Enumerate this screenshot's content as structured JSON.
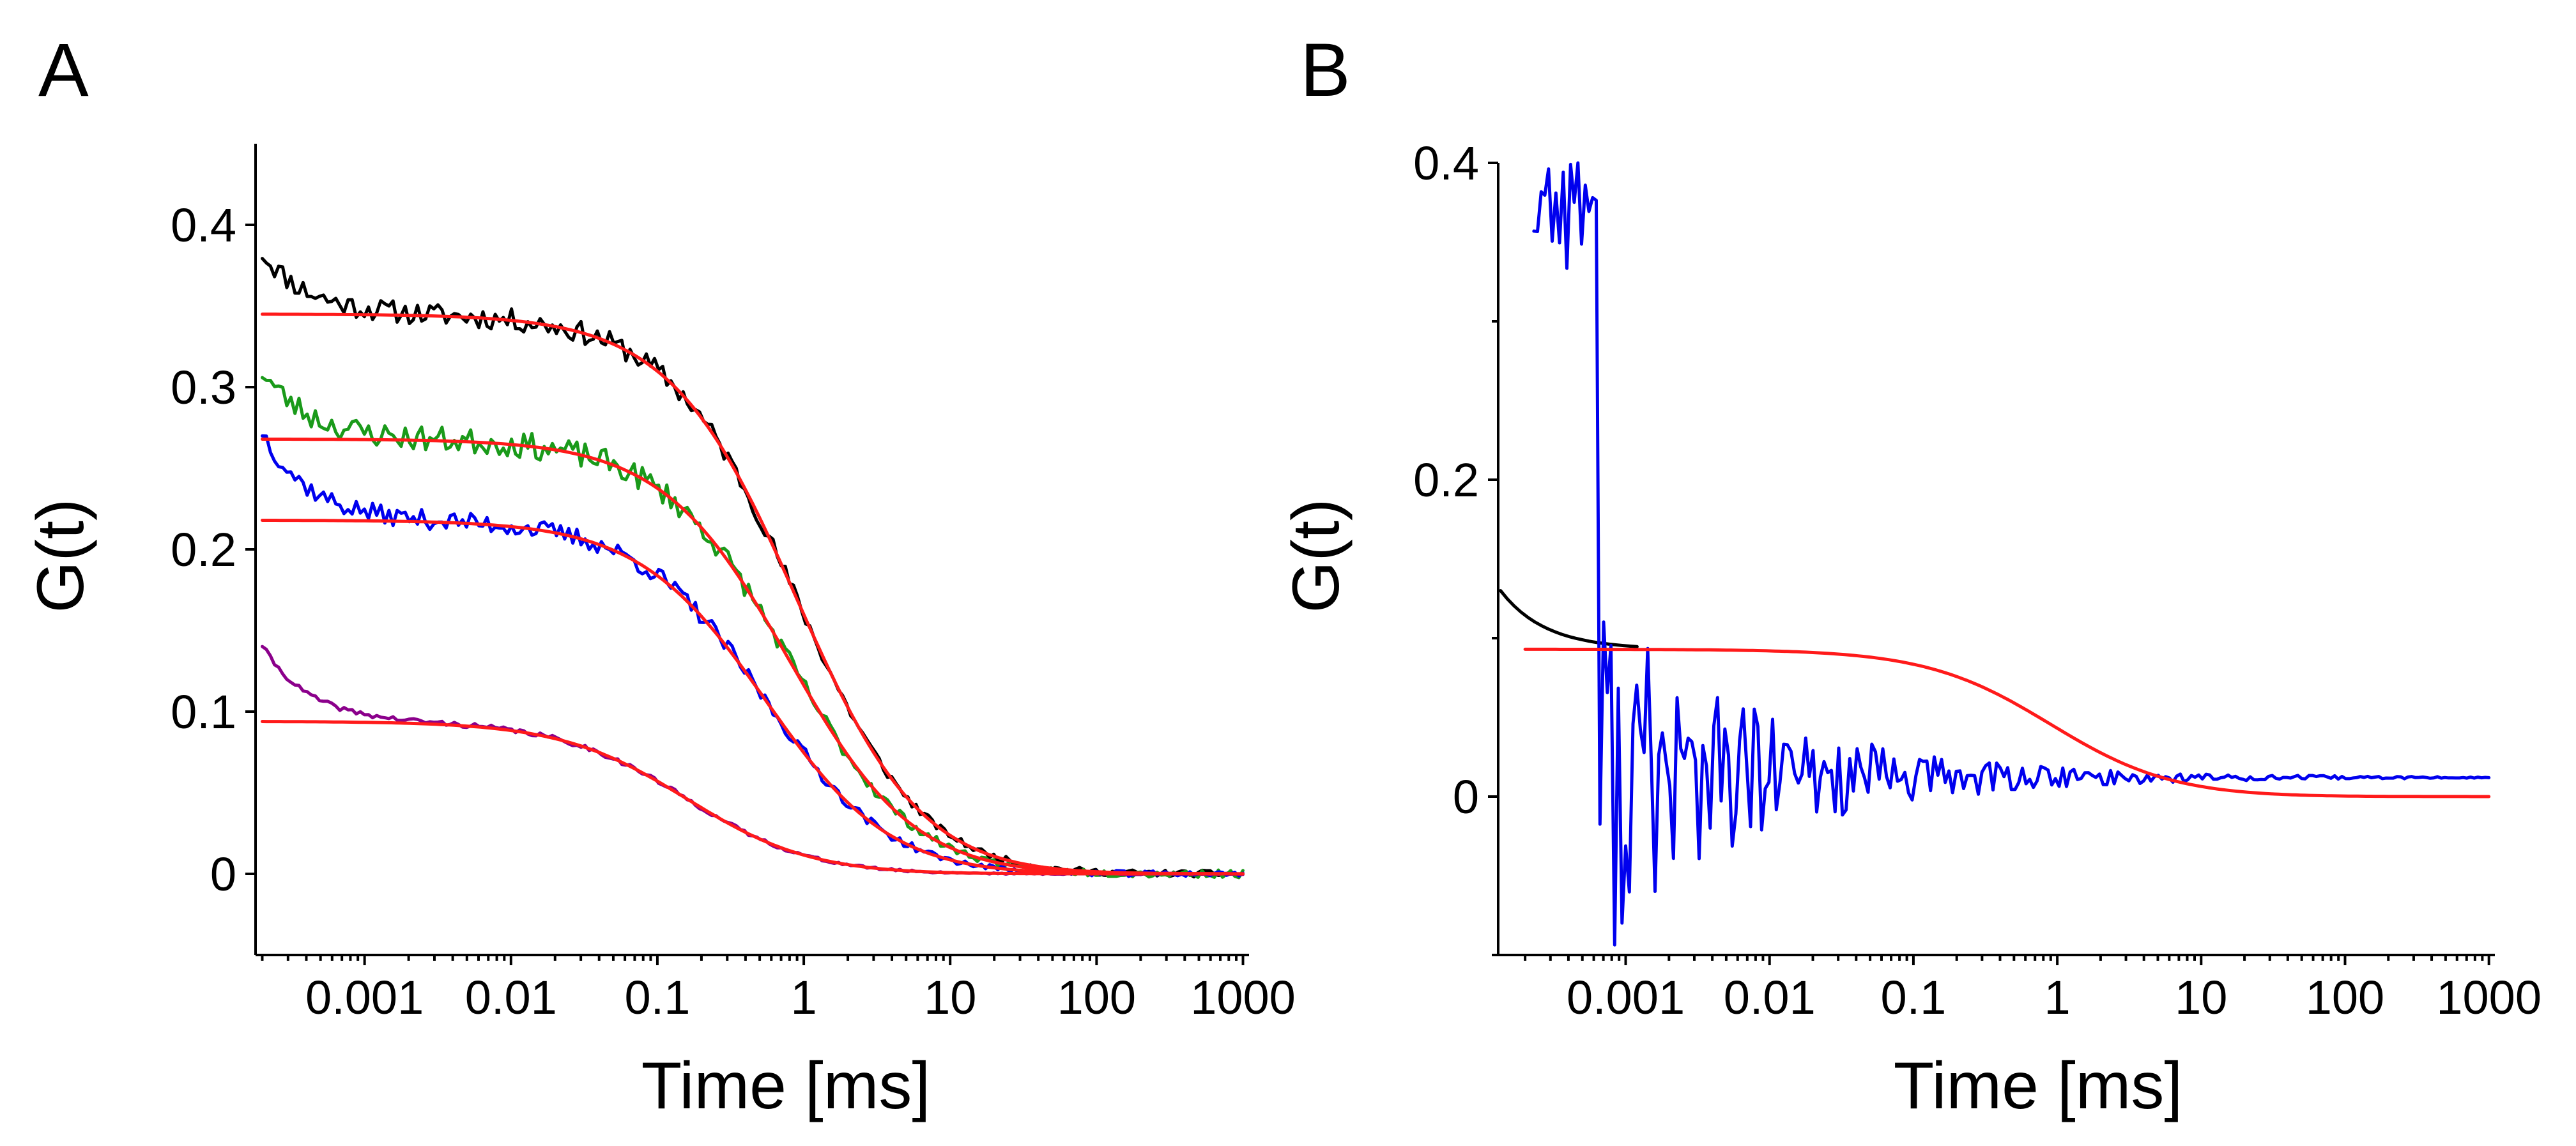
{
  "chart_data": [
    {
      "panel_label": "A",
      "type": "line",
      "xscale": "log",
      "xlabel": "Time [ms]",
      "ylabel": "G(t)",
      "xlim": [
        0.00018,
        1100
      ],
      "ylim": [
        -0.05,
        0.45
      ],
      "xticks": [
        0.001,
        0.01,
        0.1,
        1,
        10,
        100,
        1000
      ],
      "xtick_labels": [
        "0.001",
        "0.01",
        "0.1",
        "1",
        "10",
        "100",
        "1000"
      ],
      "yticks": [
        0,
        0.1,
        0.2,
        0.3,
        0.4
      ],
      "ytick_labels": [
        "0",
        "0.1",
        "0.2",
        "0.3",
        "0.4"
      ],
      "series": [
        {
          "name": "black data",
          "color": "#000000",
          "kind": "data",
          "G0": 0.345,
          "tauD": 0.9,
          "tail": 0.04,
          "start": 0.383,
          "noise": 0.007,
          "seed": 11
        },
        {
          "name": "green data",
          "color": "#1a9a1a",
          "kind": "data",
          "G0": 0.268,
          "tauD": 0.8,
          "tail": 0.05,
          "start": 0.31,
          "noise": 0.008,
          "seed": 23
        },
        {
          "name": "blue data",
          "color": "#0000ee",
          "kind": "data",
          "G0": 0.218,
          "tauD": 0.55,
          "tail": 0.05,
          "start": 0.273,
          "noise": 0.006,
          "seed": 37
        },
        {
          "name": "purple data",
          "color": "#8b008b",
          "kind": "data",
          "G0": 0.094,
          "tauD": 0.16,
          "tail": 0.05,
          "start": 0.141,
          "noise": 0.0015,
          "seed": 41
        },
        {
          "name": "black fit",
          "color": "#ff1a1a",
          "kind": "fit",
          "G0": 0.345,
          "tauD": 0.9
        },
        {
          "name": "green fit",
          "color": "#ff1a1a",
          "kind": "fit",
          "G0": 0.268,
          "tauD": 0.8
        },
        {
          "name": "blue fit",
          "color": "#ff1a1a",
          "kind": "fit",
          "G0": 0.218,
          "tauD": 0.55
        },
        {
          "name": "purple fit",
          "color": "#ff1a1a",
          "kind": "fit",
          "G0": 0.094,
          "tauD": 0.16
        }
      ]
    },
    {
      "panel_label": "B",
      "type": "line",
      "xscale": "log",
      "xlabel": "Time [ms]",
      "ylabel": "G(t)",
      "xlim": [
        0.00013,
        1100
      ],
      "ylim": [
        -0.1,
        0.4
      ],
      "xticks": [
        0.001,
        0.01,
        0.1,
        1,
        10,
        100,
        1000
      ],
      "xtick_labels": [
        "0.001",
        "0.01",
        "0.1",
        "1",
        "10",
        "100",
        "1000"
      ],
      "yticks": [
        0,
        0.2,
        0.4
      ],
      "ytick_labels": [
        "0",
        "0.2",
        "0.4"
      ],
      "minor_yticks": [
        -0.1,
        0.1,
        0.3
      ],
      "series": [
        {
          "name": "black data",
          "color": "#000000",
          "kind": "data",
          "G0": 0.093,
          "tauD": 0.9,
          "start": 0.13,
          "noise": 0.0,
          "seed": 5,
          "xmax": 0.0012
        },
        {
          "name": "blue data",
          "color": "#0000ee",
          "kind": "noisy",
          "seed": 77
        },
        {
          "name": "fit",
          "color": "#ff1a1a",
          "kind": "fit",
          "G0": 0.093,
          "tauD": 0.9
        }
      ]
    }
  ]
}
